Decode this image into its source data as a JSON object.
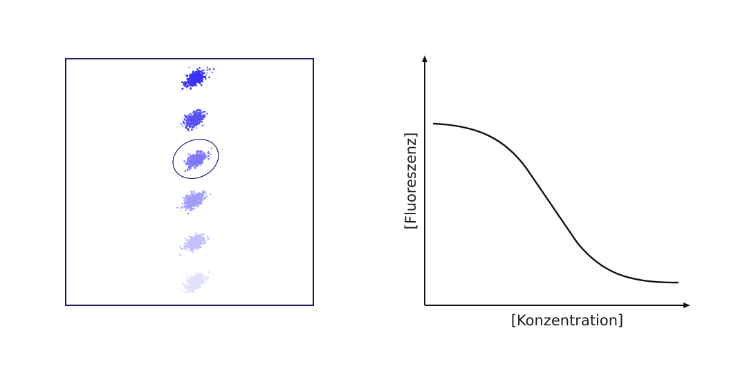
{
  "panel": {
    "frame_color": "#1e1a5e",
    "dot_color": "#3b33f2",
    "highlight_ring_color": "#1e1a5e",
    "clusters": [
      {
        "opacity": 1.0
      },
      {
        "opacity": 0.85
      },
      {
        "opacity": 0.65,
        "highlighted": true
      },
      {
        "opacity": 0.48
      },
      {
        "opacity": 0.3
      },
      {
        "opacity": 0.14
      }
    ]
  },
  "curve_plot": {
    "x_label": "[Konzentration]",
    "y_label": "[Fluoreszenz]",
    "line_color": "#111111",
    "axis_color": "#111111"
  }
}
